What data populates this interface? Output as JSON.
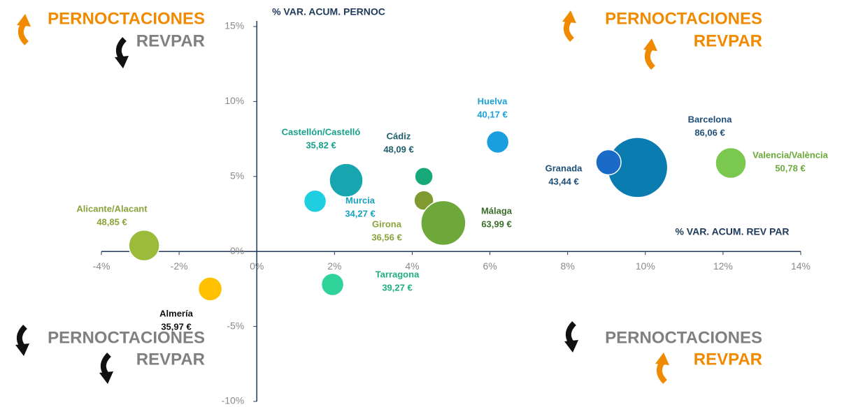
{
  "chart_data": {
    "type": "bubble",
    "xlabel": "% VAR. ACUM. REV PAR",
    "ylabel": "% VAR. ACUM. PERNOC",
    "xlim": [
      -4,
      14
    ],
    "xticks": [
      {
        "value": -4,
        "label": "-4%"
      },
      {
        "value": -2,
        "label": "-2%"
      },
      {
        "value": 0,
        "label": "0%"
      },
      {
        "value": 2,
        "label": "2%"
      },
      {
        "value": 4,
        "label": "4%"
      },
      {
        "value": 6,
        "label": "6%"
      },
      {
        "value": 8,
        "label": "8%"
      },
      {
        "value": 10,
        "label": "10%"
      },
      {
        "value": 12,
        "label": "12%"
      },
      {
        "value": 14,
        "label": "14%"
      }
    ],
    "ylim": [
      -10,
      15
    ],
    "yticks": [
      {
        "value": -10,
        "label": "-10%"
      },
      {
        "value": -5,
        "label": "-5%"
      },
      {
        "value": 0,
        "label": "0%"
      },
      {
        "value": 5,
        "label": "5%"
      },
      {
        "value": 10,
        "label": "10%"
      },
      {
        "value": 15,
        "label": "15%"
      }
    ],
    "series": [
      {
        "name": "Alicante/Alacant",
        "price": "48,85 €",
        "color": "#9bbb3b",
        "x": -2.9,
        "y": 0.4,
        "size": 22
      },
      {
        "name": "Almería",
        "price": "35,97 €",
        "color": "#ffc000",
        "x": -1.2,
        "y": -2.5,
        "size": 17
      },
      {
        "name": "Murcia",
        "price": "34,27 €",
        "color": "#1fcfe0",
        "x": 1.5,
        "y": 3.35,
        "size": 16
      },
      {
        "name": "Castellón/Castelló",
        "price": "35,82 €",
        "color": "#17a5b0",
        "x": 2.3,
        "y": 4.75,
        "size": 24
      },
      {
        "name": "Tarragona",
        "price": "39,27 €",
        "color": "#2fd39a",
        "x": 1.95,
        "y": -2.2,
        "size": 16
      },
      {
        "name": "Cádiz",
        "price": "48,09 €",
        "color": "#17a97a",
        "x": 4.3,
        "y": 5.0,
        "size": 13
      },
      {
        "name": "Girona",
        "price": "36,56 €",
        "color": "#7f9a2f",
        "x": 4.3,
        "y": 3.4,
        "size": 14
      },
      {
        "name": "Málaga",
        "price": "63,99 €",
        "color": "#6ea83a",
        "x": 4.8,
        "y": 1.9,
        "size": 32
      },
      {
        "name": "Huelva",
        "price": "40,17 €",
        "color": "#1a9ee0",
        "x": 6.2,
        "y": 7.3,
        "size": 16
      },
      {
        "name": "Barcelona",
        "price": "86,06 €",
        "color": "#0a7cb0",
        "x": 9.8,
        "y": 5.6,
        "size": 43
      },
      {
        "name": "Granada",
        "price": "43,44 €",
        "color": "#1a6bc8",
        "x": 9.05,
        "y": 5.95,
        "size": 18
      },
      {
        "name": "Valencia/València",
        "price": "50,78 €",
        "color": "#7ac94e",
        "x": 12.2,
        "y": 5.9,
        "size": 22
      }
    ],
    "quadrants": [
      {
        "pernoctaciones": "PERNOCTACIONES",
        "revpar": "REVPAR"
      },
      {
        "pernoctaciones": "PERNOCTACIONES",
        "revpar": "REVPAR"
      },
      {
        "pernoctaciones": "PERNOCTACIONES",
        "revpar": "REVPAR"
      },
      {
        "pernoctaciones": "PERNOCTACIONES",
        "revpar": "REVPAR"
      }
    ]
  }
}
